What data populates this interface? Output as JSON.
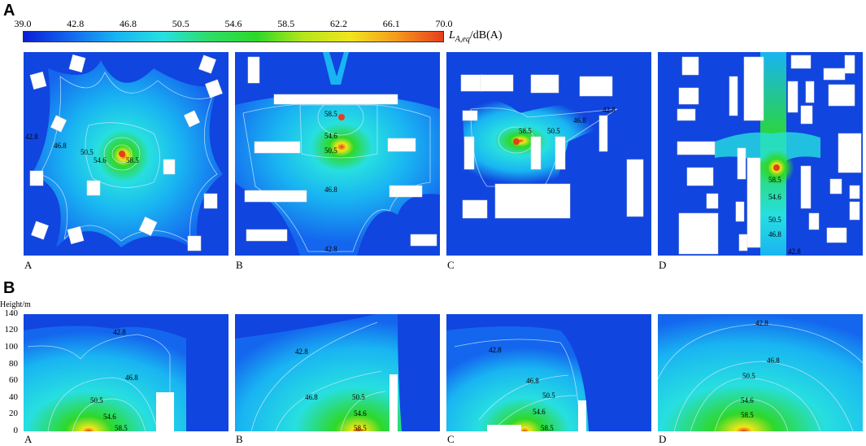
{
  "section_a_label": "A",
  "section_b_label": "B",
  "colorbar": {
    "ticks": [
      "39.0",
      "42.8",
      "46.8",
      "50.5",
      "54.6",
      "58.5",
      "62.2",
      "66.1",
      "70.0"
    ],
    "unit_prefix": "L",
    "unit_sub": "A,eq",
    "unit_suffix": "/dB(A)",
    "colors": [
      "#0a1fd6",
      "#1466ee",
      "#19b4f2",
      "#27dfe0",
      "#2fdc66",
      "#2ed82a",
      "#b6e61a",
      "#f0e51c",
      "#f59a1c",
      "#e63d1e"
    ]
  },
  "plan_panels": [
    {
      "label": "A",
      "contours": [
        "42.8",
        "46.8",
        "50.5",
        "54.6",
        "58.5"
      ]
    },
    {
      "label": "B",
      "contours": [
        "58.5",
        "54.6",
        "50.5",
        "46.8",
        "42.8"
      ]
    },
    {
      "label": "C",
      "contours": [
        "42.8",
        "46.8",
        "58.5",
        "50.5"
      ]
    },
    {
      "label": "D",
      "contours": [
        "58.5",
        "54.6",
        "50.5",
        "46.8",
        "42.8"
      ]
    }
  ],
  "section_panels": [
    {
      "label": "A",
      "contours": [
        "42.8",
        "46.8",
        "50.5",
        "54.6",
        "58.5"
      ]
    },
    {
      "label": "B",
      "contours": [
        "42.8",
        "46.8",
        "50.5",
        "54.6",
        "58.5"
      ]
    },
    {
      "label": "C",
      "contours": [
        "42.8",
        "46.8",
        "50.5",
        "54.6",
        "58.5"
      ]
    },
    {
      "label": "D",
      "contours": [
        "42.8",
        "46.8",
        "50.5",
        "54.6",
        "58.5"
      ]
    }
  ],
  "y_axis": {
    "title": "Height/m",
    "ticks": [
      "140",
      "120",
      "100",
      "80",
      "60",
      "40",
      "20",
      "0"
    ]
  }
}
